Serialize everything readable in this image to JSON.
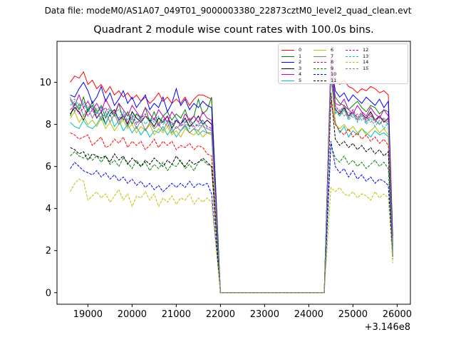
{
  "figure": {
    "suptitle": "Data file: modeM0/AS1A07_049T01_9000003380_22873cztM0_level2_quad_clean.evt",
    "title": "Quadrant 2 module wise count rates with 100.0s bins.",
    "x_offset_label": "+3.146e8"
  },
  "chart_data": {
    "type": "line",
    "title": "Quadrant 2 module wise count rates with 100.0s bins.",
    "xlabel": "",
    "ylabel": "",
    "x_offset": 314600000,
    "xlim": [
      18300,
      26300
    ],
    "ylim": [
      -0.55,
      11.95
    ],
    "x_ticks": [
      19000,
      20000,
      21000,
      22000,
      23000,
      24000,
      25000,
      26000
    ],
    "y_ticks": [
      0,
      2,
      4,
      6,
      8,
      10
    ],
    "x_tick_labels": [
      "19000",
      "20000",
      "21000",
      "22000",
      "23000",
      "24000",
      "25000",
      "26000"
    ],
    "y_tick_labels": [
      "0",
      "2",
      "4",
      "6",
      "8",
      "10"
    ],
    "grid": false,
    "legend_location": "upper right",
    "segments": [
      {
        "x_start": 18600,
        "x_end": 21800,
        "step": 100
      },
      {
        "x_start": 24500,
        "x_end": 25800,
        "step": 100
      }
    ],
    "drop": {
      "x_start": 21800,
      "x_flat_start": 22000,
      "x_flat_end": 24350,
      "x_rise_end": 24500,
      "x_last": 25900
    },
    "series": [
      {
        "name": "0",
        "color": "#ff0000",
        "dash": "solid",
        "values1": [
          10.0,
          10.3,
          10.2,
          10.5,
          9.9,
          10.1,
          9.7,
          9.9,
          9.5,
          9.8,
          9.4,
          9.6,
          9.3,
          9.5,
          9.2,
          9.4,
          9.1,
          9.3,
          9.0,
          9.2,
          9.5,
          9.1,
          9.3,
          9.0,
          9.2,
          9.0,
          9.3,
          8.9,
          9.2,
          9.4,
          9.4,
          9.3,
          9.2
        ],
        "values2": [
          11.0,
          10.2,
          9.9,
          10.1,
          9.8,
          9.7,
          9.5,
          9.7,
          9.6,
          9.8,
          9.7,
          9.5,
          9.6,
          9.4
        ],
        "last": 2.7
      },
      {
        "name": "1",
        "color": "#008000",
        "dash": "solid",
        "values1": [
          8.4,
          9.0,
          8.7,
          9.3,
          8.6,
          9.1,
          8.5,
          8.9,
          8.3,
          8.7,
          8.4,
          9.0,
          8.2,
          8.6,
          8.0,
          8.5,
          8.3,
          8.8,
          8.1,
          8.6,
          8.0,
          8.4,
          8.6,
          8.2,
          8.5,
          8.3,
          8.7,
          8.1,
          8.4,
          9.2,
          8.5,
          8.7,
          9.3
        ],
        "values2": [
          10.8,
          9.3,
          9.0,
          8.9,
          8.7,
          8.9,
          9.1,
          8.8,
          8.6,
          8.9,
          8.8,
          8.5,
          8.7,
          8.6
        ],
        "last": 2.4
      },
      {
        "name": "2",
        "color": "#0000ff",
        "dash": "solid",
        "values1": [
          9.4,
          9.3,
          9.7,
          10.0,
          9.6,
          9.0,
          9.3,
          9.8,
          9.1,
          9.5,
          8.9,
          9.2,
          9.6,
          9.0,
          9.3,
          8.8,
          9.1,
          9.4,
          8.7,
          9.0,
          8.8,
          9.3,
          8.6,
          9.0,
          9.7,
          8.9,
          9.2,
          8.7,
          9.0,
          8.8,
          9.1,
          8.9,
          8.8
        ],
        "values2": [
          10.9,
          9.6,
          9.3,
          9.5,
          9.1,
          9.4,
          9.2,
          9.0,
          9.3,
          9.1,
          8.9,
          9.2,
          8.8,
          9.1
        ],
        "last": 2.3
      },
      {
        "name": "3",
        "color": "#000000",
        "dash": "solid",
        "values1": [
          8.5,
          8.8,
          8.6,
          8.2,
          8.7,
          8.9,
          8.3,
          8.6,
          8.0,
          8.5,
          8.7,
          8.2,
          8.4,
          8.0,
          8.6,
          8.3,
          8.1,
          8.4,
          8.2,
          7.9,
          8.3,
          8.1,
          8.4,
          7.8,
          8.2,
          8.0,
          8.3,
          7.9,
          8.1,
          8.4,
          8.0,
          8.2,
          8.0
        ],
        "values2": [
          10.6,
          8.7,
          8.5,
          8.8,
          8.4,
          8.6,
          8.2,
          8.5,
          8.3,
          8.6,
          8.2,
          8.4,
          8.1,
          8.3
        ],
        "last": 2.2
      },
      {
        "name": "4",
        "color": "#bf00bf",
        "dash": "solid",
        "values1": [
          9.2,
          8.9,
          9.4,
          8.8,
          9.1,
          8.7,
          9.0,
          8.6,
          9.2,
          8.8,
          8.5,
          9.0,
          8.7,
          8.4,
          8.9,
          8.6,
          8.3,
          8.8,
          8.5,
          8.2,
          8.7,
          8.4,
          8.1,
          8.6,
          8.3,
          8.0,
          8.5,
          8.2,
          8.4,
          8.1,
          8.6,
          8.3,
          8.2
        ],
        "values2": [
          11.2,
          9.0,
          8.9,
          9.2,
          8.7,
          8.5,
          8.9,
          8.6,
          8.4,
          8.8,
          8.5,
          8.3,
          8.7,
          8.4
        ],
        "last": 2.1
      },
      {
        "name": "5",
        "color": "#00bfbf",
        "dash": "solid",
        "values1": [
          8.1,
          7.9,
          7.8,
          8.2,
          7.9,
          7.8,
          8.0,
          8.4,
          8.0,
          8.5,
          7.9,
          8.2,
          7.7,
          8.0,
          7.6,
          7.9,
          7.5,
          7.8,
          7.4,
          7.7,
          7.6,
          7.9,
          7.5,
          7.8,
          7.4,
          7.7,
          7.9,
          7.6,
          7.8,
          7.5,
          7.7,
          7.6,
          7.5
        ],
        "values2": [
          10.4,
          8.1,
          7.6,
          7.9,
          7.4,
          7.7,
          7.5,
          7.8,
          7.6,
          7.4,
          7.7,
          7.5,
          7.6,
          7.4
        ],
        "last": 2.0
      },
      {
        "name": "6",
        "color": "#bfbf00",
        "dash": "solid",
        "values1": [
          8.3,
          8.6,
          8.1,
          8.4,
          8.0,
          8.2,
          7.9,
          8.3,
          7.8,
          8.1,
          7.7,
          8.0,
          8.2,
          7.8,
          8.0,
          7.6,
          7.9,
          7.7,
          8.0,
          7.5,
          7.8,
          7.6,
          7.9,
          7.5,
          7.7,
          7.4,
          7.8,
          7.6,
          7.5,
          7.7,
          7.4,
          7.6,
          7.5
        ],
        "values2": [
          10.5,
          8.0,
          7.8,
          8.0,
          7.7,
          7.9,
          7.6,
          7.8,
          7.5,
          7.7,
          7.9,
          7.6,
          7.8,
          7.5
        ],
        "last": 1.9
      },
      {
        "name": "7",
        "color": "#808080",
        "dash": "solid",
        "values1": [
          9.3,
          8.6,
          9.0,
          8.4,
          8.8,
          8.3,
          8.7,
          8.2,
          8.6,
          8.1,
          8.5,
          8.0,
          8.4,
          7.9,
          8.3,
          7.8,
          8.2,
          7.7,
          8.1,
          7.8,
          8.0,
          7.7,
          8.1,
          7.6,
          7.9,
          7.7,
          8.0,
          7.6,
          7.8,
          7.7,
          8.0,
          7.6,
          7.6
        ],
        "values2": [
          10.7,
          8.8,
          8.4,
          8.7,
          8.3,
          8.6,
          8.2,
          8.5,
          8.1,
          8.4,
          8.2,
          8.0,
          8.3,
          8.1
        ],
        "last": 2.0
      },
      {
        "name": "8",
        "color": "#ff0000",
        "dash": "dashed",
        "values1": [
          7.6,
          7.5,
          7.3,
          7.4,
          7.5,
          7.0,
          7.2,
          7.4,
          6.9,
          7.0,
          7.3,
          7.1,
          7.4,
          6.9,
          7.2,
          7.0,
          7.2,
          6.8,
          7.0,
          7.3,
          6.9,
          7.2,
          7.0,
          7.2,
          6.8,
          7.0,
          6.9,
          7.1,
          6.8,
          7.0,
          6.9,
          6.6,
          6.5
        ],
        "values2": [
          9.1,
          8.0,
          7.7,
          7.5,
          7.8,
          7.4,
          7.6,
          7.3,
          7.5,
          7.2,
          7.4,
          7.1,
          7.3,
          7.0
        ],
        "last": 1.8
      },
      {
        "name": "9",
        "color": "#008000",
        "dash": "dashed",
        "values1": [
          6.5,
          6.7,
          6.5,
          6.4,
          6.6,
          6.3,
          6.5,
          6.2,
          6.5,
          6.1,
          6.3,
          6.0,
          6.4,
          6.2,
          5.9,
          6.3,
          6.0,
          6.2,
          5.8,
          6.1,
          5.9,
          6.2,
          5.8,
          6.1,
          6.0,
          6.3,
          5.9,
          6.1,
          5.8,
          6.2,
          6.3,
          6.1,
          6.0
        ],
        "values2": [
          7.0,
          6.4,
          6.2,
          6.5,
          6.1,
          6.3,
          6.0,
          6.2,
          5.9,
          6.1,
          6.3,
          6.0,
          6.2,
          5.9
        ],
        "last": 1.8
      },
      {
        "name": "10",
        "color": "#0000ff",
        "dash": "dashed",
        "values1": [
          5.9,
          6.2,
          6.0,
          5.8,
          5.7,
          5.6,
          5.8,
          5.5,
          5.7,
          5.4,
          5.6,
          5.3,
          5.5,
          5.2,
          5.4,
          5.1,
          5.3,
          5.0,
          5.2,
          4.9,
          5.1,
          4.8,
          5.0,
          5.2,
          5.0,
          5.2,
          5.0,
          5.3,
          5.0,
          5.2,
          5.1,
          5.2,
          4.7
        ],
        "values2": [
          7.2,
          6.0,
          5.7,
          5.9,
          5.5,
          5.8,
          5.4,
          5.6,
          5.3,
          5.5,
          5.2,
          5.4,
          5.3,
          5.1
        ],
        "last": 1.6
      },
      {
        "name": "11",
        "color": "#000000",
        "dash": "dashed",
        "values1": [
          6.9,
          6.8,
          6.6,
          6.7,
          6.3,
          6.6,
          6.5,
          6.4,
          6.5,
          6.2,
          6.6,
          6.3,
          6.5,
          6.1,
          6.4,
          6.2,
          6.0,
          6.3,
          6.1,
          6.4,
          6.2,
          6.0,
          6.3,
          6.1,
          6.5,
          6.2,
          6.0,
          6.3,
          6.1,
          6.2,
          6.4,
          6.2,
          6.0
        ],
        "values2": [
          9.5,
          7.3,
          7.0,
          7.2,
          6.9,
          7.1,
          6.8,
          7.0,
          6.7,
          6.9,
          6.6,
          6.8,
          6.5,
          6.7
        ],
        "last": 1.7
      },
      {
        "name": "12",
        "color": "#bf00bf",
        "dash": "dashed",
        "values1": [
          8.7,
          8.9,
          8.5,
          8.8,
          8.4,
          8.7,
          8.3,
          8.6,
          8.8,
          8.4,
          8.6,
          8.2,
          8.5,
          8.1,
          8.4,
          8.0,
          8.3,
          8.5,
          8.1,
          8.3,
          7.9,
          8.2,
          8.4,
          8.0,
          8.2,
          7.9,
          8.1,
          8.3,
          7.9,
          8.0,
          8.2,
          7.9,
          7.8
        ],
        "values2": [
          10.6,
          8.9,
          8.6,
          8.9,
          8.4,
          8.7,
          8.3,
          8.6,
          8.2,
          8.5,
          8.1,
          8.4,
          8.2,
          8.0
        ],
        "last": 1.9
      },
      {
        "name": "13",
        "color": "#00bfbf",
        "dash": "dashed",
        "values1": [
          8.9,
          9.1,
          8.8,
          9.0,
          8.6,
          8.9,
          8.5,
          8.8,
          8.4,
          8.7,
          8.5,
          8.3,
          8.6,
          8.2,
          8.5,
          8.1,
          8.4,
          8.0,
          8.3,
          8.1,
          8.4,
          8.0,
          8.2,
          7.9,
          8.3,
          8.0,
          8.2,
          7.8,
          8.1,
          7.9,
          8.2,
          7.8,
          7.7
        ],
        "values2": [
          10.2,
          8.6,
          8.4,
          8.7,
          8.2,
          8.5,
          8.1,
          8.4,
          8.0,
          8.3,
          7.9,
          8.2,
          7.8,
          8.1
        ],
        "last": 1.8
      },
      {
        "name": "14",
        "color": "#bfbf00",
        "dash": "dashed",
        "values1": [
          4.8,
          5.2,
          5.4,
          5.3,
          4.4,
          4.6,
          4.8,
          4.5,
          4.7,
          4.3,
          4.6,
          4.9,
          4.4,
          4.7,
          4.1,
          4.6,
          4.5,
          4.8,
          4.4,
          4.7,
          4.1,
          4.5,
          4.3,
          4.6,
          4.2,
          4.5,
          4.4,
          4.7,
          4.2,
          4.5,
          4.3,
          4.5,
          4.3
        ],
        "values2": [
          5.0,
          4.8,
          5.0,
          4.7,
          4.6,
          4.8,
          4.5,
          4.7,
          4.6,
          4.4,
          4.8,
          4.5,
          4.7,
          4.5
        ],
        "last": 1.4
      },
      {
        "name": "15",
        "color": "#808080",
        "dash": "dashed",
        "values1": [
          9.1,
          9.2,
          8.9,
          9.1,
          8.8,
          9.0,
          8.7,
          8.9,
          8.6,
          8.8,
          8.5,
          8.7,
          8.4,
          8.6,
          8.3,
          8.5,
          8.2,
          8.4,
          8.1,
          8.3,
          8.0,
          8.2,
          7.9,
          8.1,
          7.8,
          8.0,
          7.9,
          8.1,
          7.8,
          8.0,
          7.9,
          7.8,
          7.7
        ],
        "values2": [
          10.3,
          8.5,
          8.7,
          8.4,
          8.6,
          8.3,
          8.5,
          8.2,
          8.4,
          8.1,
          8.3,
          8.0,
          8.2,
          8.0
        ],
        "last": 1.8
      }
    ]
  }
}
